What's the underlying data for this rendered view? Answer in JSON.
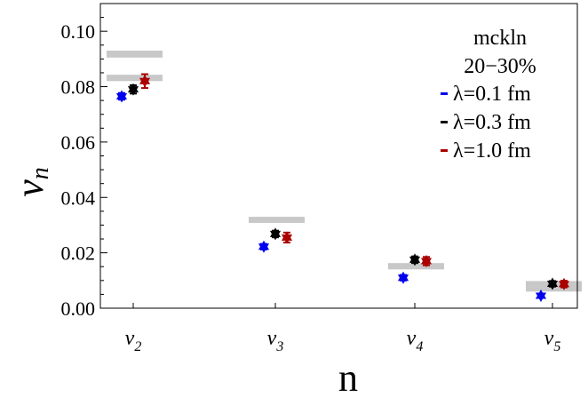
{
  "chart_data": {
    "type": "scatter",
    "xlabel": "n",
    "ylabel_main": "v",
    "ylabel_sub": "n",
    "ylim": [
      0,
      0.11
    ],
    "yticks": [
      "0.00",
      "0.02",
      "0.04",
      "0.06",
      "0.08",
      "0.10"
    ],
    "ytick_values": [
      0,
      0.02,
      0.04,
      0.06,
      0.08,
      0.1
    ],
    "categories": [
      {
        "main": "v",
        "sub": "2"
      },
      {
        "main": "v",
        "sub": "3"
      },
      {
        "main": "v",
        "sub": "4"
      },
      {
        "main": "v",
        "sub": "5"
      }
    ],
    "legend": {
      "title_line1": "mckln",
      "title_line2": "20−30%",
      "placement": "top-right"
    },
    "series": [
      {
        "name": "λ=0.1 fm",
        "color": "#0000ee",
        "values": [
          0.0765,
          0.0222,
          0.011,
          0.0045
        ],
        "errors": [
          0.0012,
          0.001,
          0.001,
          0.0008
        ]
      },
      {
        "name": "λ=0.3 fm",
        "color": "#000000",
        "values": [
          0.079,
          0.0268,
          0.0175,
          0.0088
        ],
        "errors": [
          0.0015,
          0.0012,
          0.0012,
          0.001
        ]
      },
      {
        "name": "λ=1.0 fm",
        "color": "#aa0000",
        "values": [
          0.082,
          0.0255,
          0.017,
          0.0087
        ],
        "errors": [
          0.0025,
          0.0018,
          0.0015,
          0.0012
        ]
      }
    ],
    "bands": [
      {
        "category": 0,
        "y0": 0.0905,
        "y1": 0.093
      },
      {
        "category": 0,
        "y0": 0.082,
        "y1": 0.0843
      },
      {
        "category": 1,
        "y0": 0.0308,
        "y1": 0.033
      },
      {
        "category": 2,
        "y0": 0.014,
        "y1": 0.0163
      },
      {
        "category": 3,
        "y0": 0.006,
        "y1": 0.0098
      }
    ],
    "band_color": "#c8c8c8",
    "grid": false
  }
}
